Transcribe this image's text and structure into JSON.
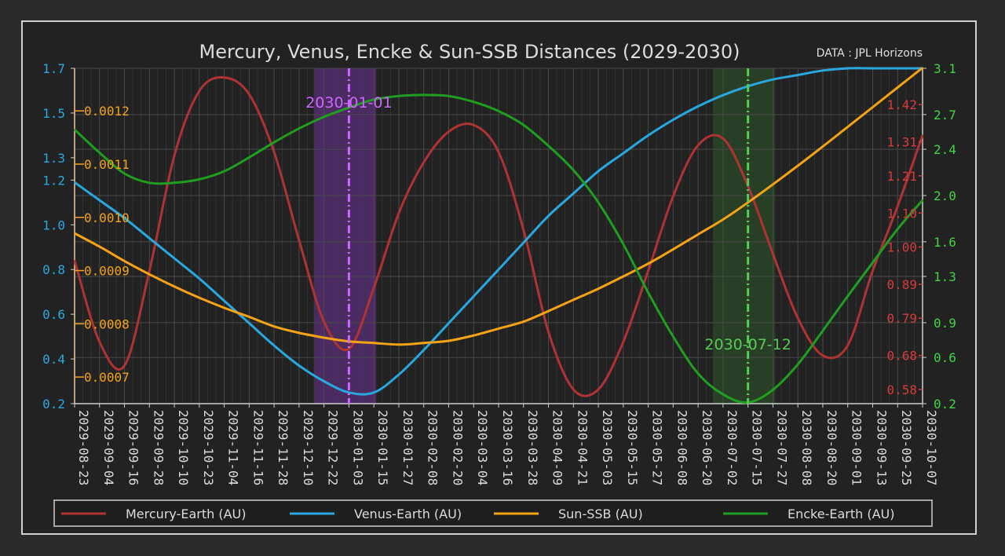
{
  "chart_data": {
    "type": "line",
    "title": "Mercury, Venus, Encke & Sun-SSB Distances (2029-2030)",
    "source_note": "DATA : JPL Horizons",
    "x": [
      "2029-08-23",
      "2029-09-04",
      "2029-09-16",
      "2029-09-28",
      "2029-10-10",
      "2029-10-23",
      "2029-11-04",
      "2029-11-16",
      "2029-11-28",
      "2029-12-10",
      "2029-12-22",
      "2030-01-03",
      "2030-01-15",
      "2030-01-27",
      "2030-02-08",
      "2030-02-20",
      "2030-03-04",
      "2030-03-16",
      "2030-03-28",
      "2030-04-09",
      "2030-04-21",
      "2030-05-03",
      "2030-05-15",
      "2030-05-27",
      "2030-06-08",
      "2030-06-20",
      "2030-07-02",
      "2030-07-15",
      "2030-07-27",
      "2030-08-08",
      "2030-08-20",
      "2030-09-01",
      "2030-09-13",
      "2030-09-25",
      "2030-10-07"
    ],
    "axes": {
      "left": {
        "ticks": [
          "0.2",
          "0.4",
          "0.6",
          "0.8",
          "1.0",
          "1.2",
          "1.3",
          "1.5",
          "1.7"
        ],
        "ylim": [
          0.2,
          1.7
        ],
        "color": "#29a8e0"
      },
      "inner_left": {
        "ticks": [
          "0.0007",
          "0.0008",
          "0.0009",
          "0.0010",
          "0.0011",
          "0.0012"
        ],
        "ylim": [
          0.00065,
          0.00128
        ],
        "color": "#f5a316"
      },
      "inner_right": {
        "ticks": [
          "0.58",
          "0.68",
          "0.79",
          "0.89",
          "1.00",
          "1.10",
          "1.21",
          "1.31",
          "1.42"
        ],
        "ylim": [
          0.538,
          1.527
        ],
        "color": "#d43b3b"
      },
      "right": {
        "ticks": [
          "0.2",
          "0.6",
          "0.9",
          "1.3",
          "1.6",
          "2.0",
          "2.4",
          "2.7",
          "3.1"
        ],
        "ylim": [
          0.2,
          3.1
        ],
        "color": "#3fd63f"
      }
    },
    "series": [
      {
        "name": "Mercury-Earth (AU)",
        "axis": "inner_right",
        "color": "#b03333",
        "values": [
          0.96,
          0.72,
          0.65,
          0.93,
          1.27,
          1.46,
          1.5,
          1.45,
          1.28,
          1.02,
          0.78,
          0.7,
          0.88,
          1.1,
          1.25,
          1.34,
          1.36,
          1.28,
          1.05,
          0.75,
          0.58,
          0.58,
          0.72,
          0.93,
          1.15,
          1.3,
          1.32,
          1.18,
          0.98,
          0.79,
          0.68,
          0.71,
          0.93,
          1.12,
          1.33
        ]
      },
      {
        "name": "Venus-Earth (AU)",
        "axis": "left",
        "color": "#29a8e0",
        "values": [
          1.19,
          1.11,
          1.03,
          0.94,
          0.85,
          0.76,
          0.66,
          0.56,
          0.46,
          0.37,
          0.3,
          0.25,
          0.25,
          0.33,
          0.44,
          0.56,
          0.68,
          0.8,
          0.92,
          1.04,
          1.14,
          1.24,
          1.32,
          1.4,
          1.47,
          1.53,
          1.58,
          1.62,
          1.65,
          1.67,
          1.69,
          1.7,
          1.7,
          1.7,
          1.7
        ]
      },
      {
        "name": "Sun-SSB (AU)",
        "axis": "inner_left",
        "color": "#f5a316",
        "values": [
          0.00097,
          0.000945,
          0.000918,
          0.000893,
          0.00087,
          0.000849,
          0.00083,
          0.000813,
          0.000795,
          0.000783,
          0.000774,
          0.000767,
          0.000764,
          0.000761,
          0.000764,
          0.000768,
          0.000778,
          0.000791,
          0.000804,
          0.000824,
          0.000845,
          0.000866,
          0.000889,
          0.000913,
          0.00094,
          0.000968,
          0.000996,
          0.001028,
          0.001062,
          0.001097,
          0.001133,
          0.00117,
          0.001207,
          0.001244,
          0.001281
        ]
      },
      {
        "name": "Encke-Earth (AU)",
        "axis": "right",
        "color": "#1f9e1f",
        "values": [
          2.57,
          2.37,
          2.19,
          2.11,
          2.11,
          2.14,
          2.21,
          2.33,
          2.46,
          2.58,
          2.68,
          2.76,
          2.83,
          2.86,
          2.87,
          2.86,
          2.81,
          2.73,
          2.61,
          2.43,
          2.22,
          1.94,
          1.58,
          1.16,
          0.78,
          0.46,
          0.28,
          0.21,
          0.32,
          0.54,
          0.83,
          1.13,
          1.42,
          1.71,
          1.96
        ]
      }
    ],
    "annotations": [
      {
        "label": "2030-01-01",
        "x_index": 11,
        "color": "#cc66ff",
        "band_color": "#5b2d7a"
      },
      {
        "label": "2030-07-12",
        "x_index": 27,
        "color": "#55cc55",
        "band_color": "#2a4a25"
      }
    ],
    "legend": {
      "placement": "bottom",
      "entries": [
        "Mercury-Earth (AU)",
        "Venus-Earth (AU)",
        "Sun-SSB (AU)",
        "Encke-Earth (AU)"
      ]
    },
    "grid": true
  }
}
